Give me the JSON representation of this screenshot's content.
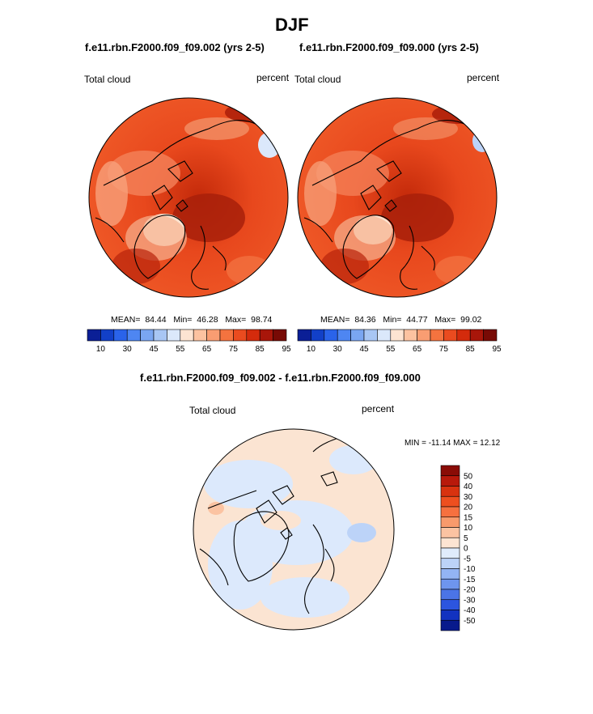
{
  "title": "DJF",
  "panels": [
    {
      "case": "f.e11.rbn.F2000.f09_f09.002 (yrs 2-5)",
      "variable": "Total cloud",
      "units": "percent",
      "stats": {
        "mean_label": "MEAN=",
        "mean": "84.44",
        "min_label": "Min=",
        "min": "46.28",
        "max_label": "Max=",
        "max": "98.74"
      }
    },
    {
      "case": "f.e11.rbn.F2000.f09_f09.000 (yrs 2-5)",
      "variable": "Total cloud",
      "units": "percent",
      "stats": {
        "mean_label": "MEAN=",
        "mean": "84.36",
        "min_label": "Min=",
        "min": "44.77",
        "max_label": "Max=",
        "max": "99.02"
      }
    }
  ],
  "abs_colorbar": {
    "colors": [
      "#0b1f96",
      "#1240c8",
      "#2a63ea",
      "#4e86f2",
      "#7aa6f2",
      "#a8c6f4",
      "#dbe8fb",
      "#fde4d2",
      "#fcc2a0",
      "#f99d72",
      "#f4733f",
      "#ea4b1f",
      "#d42b0c",
      "#a8160a",
      "#780a05"
    ],
    "tick_labels": [
      "10",
      "30",
      "45",
      "55",
      "65",
      "75",
      "85",
      "95"
    ]
  },
  "diff": {
    "title": "f.e11.rbn.F2000.f09_f09.002 - f.e11.rbn.F2000.f09_f09.000",
    "variable": "Total cloud",
    "units": "percent",
    "minmax": "MIN = -11.14  MAX =  12.12",
    "colorbar": {
      "colors": [
        "#8a0c06",
        "#b8190b",
        "#d8320f",
        "#ee4f1f",
        "#f6703f",
        "#f89a6c",
        "#fbc3a2",
        "#fde4d2",
        "#e0ecfc",
        "#bcd3f8",
        "#93b4f4",
        "#6e95ee",
        "#4b74e6",
        "#2c55df",
        "#1232c0",
        "#081a8c"
      ],
      "labels": [
        "50",
        "40",
        "30",
        "20",
        "15",
        "10",
        "5",
        "0",
        "-5",
        "-10",
        "-15",
        "-20",
        "-30",
        "-40",
        "-50"
      ]
    }
  }
}
